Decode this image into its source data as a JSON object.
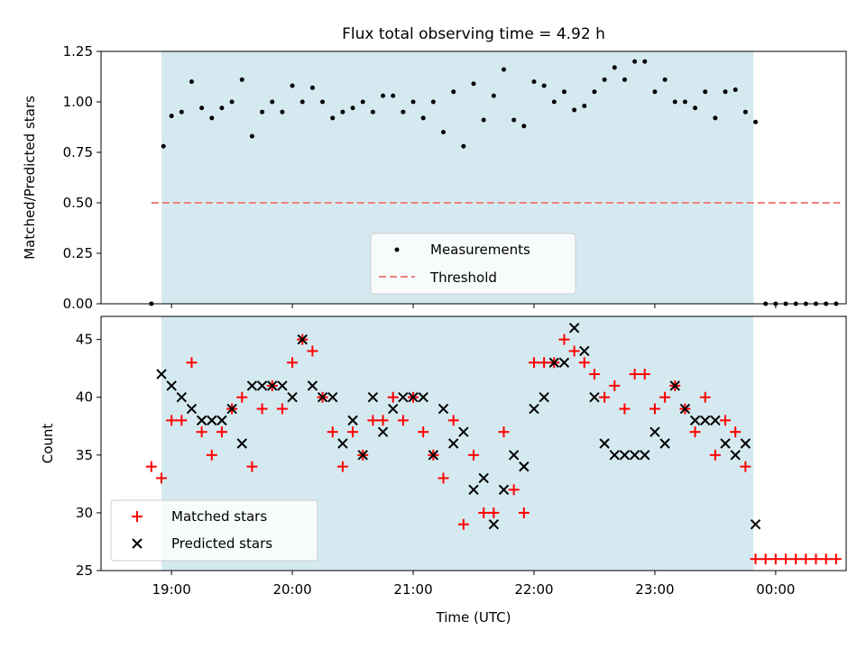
{
  "chart_data": [
    {
      "type": "scatter",
      "title": "Flux total observing time = 4.92 h",
      "xlabel": "",
      "ylabel": "Matched/Predicted stars",
      "ylim": [
        0,
        1.25
      ],
      "yticks": [
        0.0,
        0.25,
        0.5,
        0.75,
        1.0,
        1.25
      ],
      "ytick_labels": [
        "0.00",
        "0.25",
        "0.50",
        "0.75",
        "1.00",
        "1.25"
      ],
      "xticks_minutes": [
        1140,
        1200,
        1260,
        1320,
        1380,
        1440
      ],
      "grid": false,
      "legend_placement": "lower center",
      "shaded_interval": {
        "start": "18:55",
        "end": "23:49",
        "color": "#d4eaf0"
      },
      "threshold": {
        "name": "Threshold",
        "value": 0.5,
        "x_start": "18:50",
        "x_end": "00:32",
        "color": "#f08080"
      },
      "series": [
        {
          "name": "Measurements",
          "color": "#000000",
          "points": [
            [
              "18:50",
              0.0
            ],
            [
              "18:56",
              0.78
            ],
            [
              "19:00",
              0.93
            ],
            [
              "19:05",
              0.95
            ],
            [
              "19:10",
              1.1
            ],
            [
              "19:15",
              0.97
            ],
            [
              "19:20",
              0.92
            ],
            [
              "19:25",
              0.97
            ],
            [
              "19:30",
              1.0
            ],
            [
              "19:35",
              1.11
            ],
            [
              "19:40",
              0.83
            ],
            [
              "19:45",
              0.95
            ],
            [
              "19:50",
              1.0
            ],
            [
              "19:55",
              0.95
            ],
            [
              "20:00",
              1.08
            ],
            [
              "20:05",
              1.0
            ],
            [
              "20:10",
              1.07
            ],
            [
              "20:15",
              1.0
            ],
            [
              "20:20",
              0.92
            ],
            [
              "20:25",
              0.95
            ],
            [
              "20:30",
              0.97
            ],
            [
              "20:35",
              1.0
            ],
            [
              "20:40",
              0.95
            ],
            [
              "20:45",
              1.03
            ],
            [
              "20:50",
              1.03
            ],
            [
              "20:55",
              0.95
            ],
            [
              "21:00",
              1.0
            ],
            [
              "21:05",
              0.92
            ],
            [
              "21:10",
              1.0
            ],
            [
              "21:15",
              0.85
            ],
            [
              "21:20",
              1.05
            ],
            [
              "21:25",
              0.78
            ],
            [
              "21:30",
              1.09
            ],
            [
              "21:35",
              0.91
            ],
            [
              "21:40",
              1.03
            ],
            [
              "21:45",
              1.16
            ],
            [
              "21:50",
              0.91
            ],
            [
              "21:55",
              0.88
            ],
            [
              "22:00",
              1.1
            ],
            [
              "22:05",
              1.08
            ],
            [
              "22:10",
              1.0
            ],
            [
              "22:15",
              1.05
            ],
            [
              "22:20",
              0.96
            ],
            [
              "22:25",
              0.98
            ],
            [
              "22:30",
              1.05
            ],
            [
              "22:35",
              1.11
            ],
            [
              "22:40",
              1.17
            ],
            [
              "22:45",
              1.11
            ],
            [
              "22:50",
              1.2
            ],
            [
              "22:55",
              1.2
            ],
            [
              "23:00",
              1.05
            ],
            [
              "23:05",
              1.11
            ],
            [
              "23:10",
              1.0
            ],
            [
              "23:15",
              1.0
            ],
            [
              "23:20",
              0.97
            ],
            [
              "23:25",
              1.05
            ],
            [
              "23:30",
              0.92
            ],
            [
              "23:35",
              1.05
            ],
            [
              "23:40",
              1.06
            ],
            [
              "23:45",
              0.95
            ],
            [
              "23:50",
              0.9
            ],
            [
              "23:55",
              0.0
            ],
            [
              "00:00",
              0.0
            ],
            [
              "00:05",
              0.0
            ],
            [
              "00:10",
              0.0
            ],
            [
              "00:15",
              0.0
            ],
            [
              "00:20",
              0.0
            ],
            [
              "00:25",
              0.0
            ],
            [
              "00:30",
              0.0
            ]
          ]
        }
      ]
    },
    {
      "type": "scatter",
      "title": "",
      "xlabel": "Time (UTC)",
      "ylabel": "Count",
      "ylim": [
        25,
        47
      ],
      "yticks": [
        25,
        30,
        35,
        40,
        45
      ],
      "ytick_labels": [
        "25",
        "30",
        "35",
        "40",
        "45"
      ],
      "xticks_minutes": [
        1140,
        1200,
        1260,
        1320,
        1380,
        1440
      ],
      "xtick_labels": [
        "19:00",
        "20:00",
        "21:00",
        "22:00",
        "23:00",
        "00:00"
      ],
      "grid": false,
      "legend_placement": "lower left",
      "shaded_interval": {
        "start": "18:55",
        "end": "23:49",
        "color": "#d4eaf0"
      },
      "series": [
        {
          "name": "Matched stars",
          "marker": "plus",
          "color": "#ff0000",
          "points": [
            [
              "18:50",
              34
            ],
            [
              "18:55",
              33
            ],
            [
              "19:00",
              38
            ],
            [
              "19:05",
              38
            ],
            [
              "19:10",
              43
            ],
            [
              "19:15",
              37
            ],
            [
              "19:20",
              35
            ],
            [
              "19:25",
              37
            ],
            [
              "19:30",
              39
            ],
            [
              "19:35",
              40
            ],
            [
              "19:40",
              34
            ],
            [
              "19:45",
              39
            ],
            [
              "19:50",
              41
            ],
            [
              "19:55",
              39
            ],
            [
              "20:00",
              43
            ],
            [
              "20:05",
              45
            ],
            [
              "20:10",
              44
            ],
            [
              "20:15",
              40
            ],
            [
              "20:20",
              37
            ],
            [
              "20:25",
              34
            ],
            [
              "20:30",
              37
            ],
            [
              "20:35",
              35
            ],
            [
              "20:40",
              38
            ],
            [
              "20:45",
              38
            ],
            [
              "20:50",
              40
            ],
            [
              "20:55",
              38
            ],
            [
              "21:00",
              40
            ],
            [
              "21:05",
              37
            ],
            [
              "21:10",
              35
            ],
            [
              "21:15",
              33
            ],
            [
              "21:20",
              38
            ],
            [
              "21:25",
              29
            ],
            [
              "21:30",
              35
            ],
            [
              "21:35",
              30
            ],
            [
              "21:40",
              30
            ],
            [
              "21:45",
              37
            ],
            [
              "21:50",
              32
            ],
            [
              "21:55",
              30
            ],
            [
              "22:00",
              43
            ],
            [
              "22:05",
              43
            ],
            [
              "22:10",
              43
            ],
            [
              "22:15",
              45
            ],
            [
              "22:20",
              44
            ],
            [
              "22:25",
              43
            ],
            [
              "22:30",
              42
            ],
            [
              "22:35",
              40
            ],
            [
              "22:40",
              41
            ],
            [
              "22:45",
              39
            ],
            [
              "22:50",
              42
            ],
            [
              "22:55",
              42
            ],
            [
              "23:00",
              39
            ],
            [
              "23:05",
              40
            ],
            [
              "23:10",
              41
            ],
            [
              "23:15",
              39
            ],
            [
              "23:20",
              37
            ],
            [
              "23:25",
              40
            ],
            [
              "23:30",
              35
            ],
            [
              "23:35",
              38
            ],
            [
              "23:40",
              37
            ],
            [
              "23:45",
              34
            ],
            [
              "23:50",
              26
            ],
            [
              "23:55",
              26
            ],
            [
              "00:00",
              26
            ],
            [
              "00:05",
              26
            ],
            [
              "00:10",
              26
            ],
            [
              "00:15",
              26
            ],
            [
              "00:20",
              26
            ],
            [
              "00:25",
              26
            ],
            [
              "00:30",
              26
            ]
          ]
        },
        {
          "name": "Predicted stars",
          "marker": "x",
          "color": "#000000",
          "points": [
            [
              "18:55",
              42
            ],
            [
              "19:00",
              41
            ],
            [
              "19:05",
              40
            ],
            [
              "19:10",
              39
            ],
            [
              "19:15",
              38
            ],
            [
              "19:20",
              38
            ],
            [
              "19:25",
              38
            ],
            [
              "19:30",
              39
            ],
            [
              "19:35",
              36
            ],
            [
              "19:40",
              41
            ],
            [
              "19:45",
              41
            ],
            [
              "19:50",
              41
            ],
            [
              "19:55",
              41
            ],
            [
              "20:00",
              40
            ],
            [
              "20:05",
              45
            ],
            [
              "20:10",
              41
            ],
            [
              "20:15",
              40
            ],
            [
              "20:20",
              40
            ],
            [
              "20:25",
              36
            ],
            [
              "20:30",
              38
            ],
            [
              "20:35",
              35
            ],
            [
              "20:40",
              40
            ],
            [
              "20:45",
              37
            ],
            [
              "20:50",
              39
            ],
            [
              "20:55",
              40
            ],
            [
              "21:00",
              40
            ],
            [
              "21:05",
              40
            ],
            [
              "21:10",
              35
            ],
            [
              "21:15",
              39
            ],
            [
              "21:20",
              36
            ],
            [
              "21:25",
              37
            ],
            [
              "21:30",
              32
            ],
            [
              "21:35",
              33
            ],
            [
              "21:40",
              29
            ],
            [
              "21:45",
              32
            ],
            [
              "21:50",
              35
            ],
            [
              "21:55",
              34
            ],
            [
              "22:00",
              39
            ],
            [
              "22:05",
              40
            ],
            [
              "22:10",
              43
            ],
            [
              "22:15",
              43
            ],
            [
              "22:20",
              46
            ],
            [
              "22:25",
              44
            ],
            [
              "22:30",
              40
            ],
            [
              "22:35",
              36
            ],
            [
              "22:40",
              35
            ],
            [
              "22:45",
              35
            ],
            [
              "22:50",
              35
            ],
            [
              "22:55",
              35
            ],
            [
              "23:00",
              37
            ],
            [
              "23:05",
              36
            ],
            [
              "23:10",
              41
            ],
            [
              "23:15",
              39
            ],
            [
              "23:20",
              38
            ],
            [
              "23:25",
              38
            ],
            [
              "23:30",
              38
            ],
            [
              "23:35",
              36
            ],
            [
              "23:40",
              35
            ],
            [
              "23:45",
              36
            ],
            [
              "23:50",
              29
            ]
          ]
        }
      ]
    }
  ]
}
